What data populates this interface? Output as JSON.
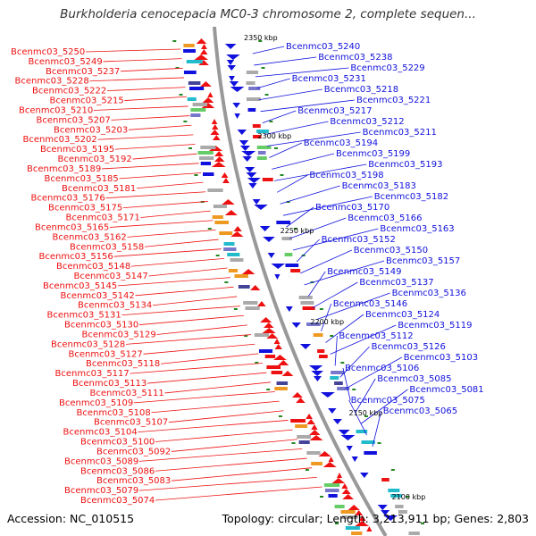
{
  "title": "Burkholderia cenocepacia MC0-3 chromosome 2, complete sequen...",
  "footer": {
    "accession": "Accession: NC_010515",
    "summary": "Topology: circular; Length: 3,213,911 bp; Genes: 2,803"
  },
  "colors": {
    "left_strand": "#ee1111",
    "right_strand": "#1111dd",
    "backbone": "#999999",
    "tick": "#228822"
  },
  "kbp_marks": [
    "2350 kbp",
    "2300 kbp",
    "2250 kbp",
    "2200 kbp",
    "2150 kbp",
    "2100 kbp"
  ],
  "left_labels": [
    "Bcenmc03_5250",
    "Bcenmc03_5249",
    "Bcenmc03_5237",
    "Bcenmc03_5228",
    "Bcenmc03_5222",
    "Bcenmc03_5215",
    "Bcenmc03_5210",
    "Bcenmc03_5207",
    "Bcenmc03_5203",
    "Bcenmc03_5202",
    "Bcenmc03_5195",
    "Bcenmc03_5192",
    "Bcenmc03_5189",
    "Bcenmc03_5185",
    "Bcenmc03_5181",
    "Bcenmc03_5176",
    "Bcenmc03_5175",
    "Bcenmc03_5171",
    "Bcenmc03_5165",
    "Bcenmc03_5162",
    "Bcenmc03_5158",
    "Bcenmc03_5156",
    "Bcenmc03_5148",
    "Bcenmc03_5147",
    "Bcenmc03_5145",
    "Bcenmc03_5142",
    "Bcenmc03_5134",
    "Bcenmc03_5131",
    "Bcenmc03_5130",
    "Bcenmc03_5129",
    "Bcenmc03_5128",
    "Bcenmc03_5127",
    "Bcenmc03_5118",
    "Bcenmc03_5117",
    "Bcenmc03_5113",
    "Bcenmc03_5111",
    "Bcenmc03_5109",
    "Bcenmc03_5108",
    "Bcenmc03_5107",
    "Bcenmc03_5104",
    "Bcenmc03_5100",
    "Bcenmc03_5092",
    "Bcenmc03_5089",
    "Bcenmc03_5086",
    "Bcenmc03_5083",
    "Bcenmc03_5079",
    "Bcenmc03_5074"
  ],
  "right_labels": [
    "Bcenmc03_5240",
    "Bcenmc03_5238",
    "Bcenmc03_5229",
    "Bcenmc03_5231",
    "Bcenmc03_5218",
    "Bcenmc03_5221",
    "Bcenmc03_5217",
    "Bcenmc03_5212",
    "Bcenmc03_5211",
    "Bcenmc03_5194",
    "Bcenmc03_5199",
    "Bcenmc03_5193",
    "Bcenmc03_5198",
    "Bcenmc03_5183",
    "Bcenmc03_5182",
    "Bcenmc03_5170",
    "Bcenmc03_5166",
    "Bcenmc03_5163",
    "Bcenmc03_5152",
    "Bcenmc03_5150",
    "Bcenmc03_5157",
    "Bcenmc03_5149",
    "Bcenmc03_5137",
    "Bcenmc03_5136",
    "Bcenmc03_5146",
    "Bcenmc03_5124",
    "Bcenmc03_5119",
    "Bcenmc03_5112",
    "Bcenmc03_5126",
    "Bcenmc03_5103",
    "Bcenmc03_5106",
    "Bcenmc03_5085",
    "Bcenmc03_5081",
    "Bcenmc03_5075",
    "Bcenmc03_5065"
  ]
}
